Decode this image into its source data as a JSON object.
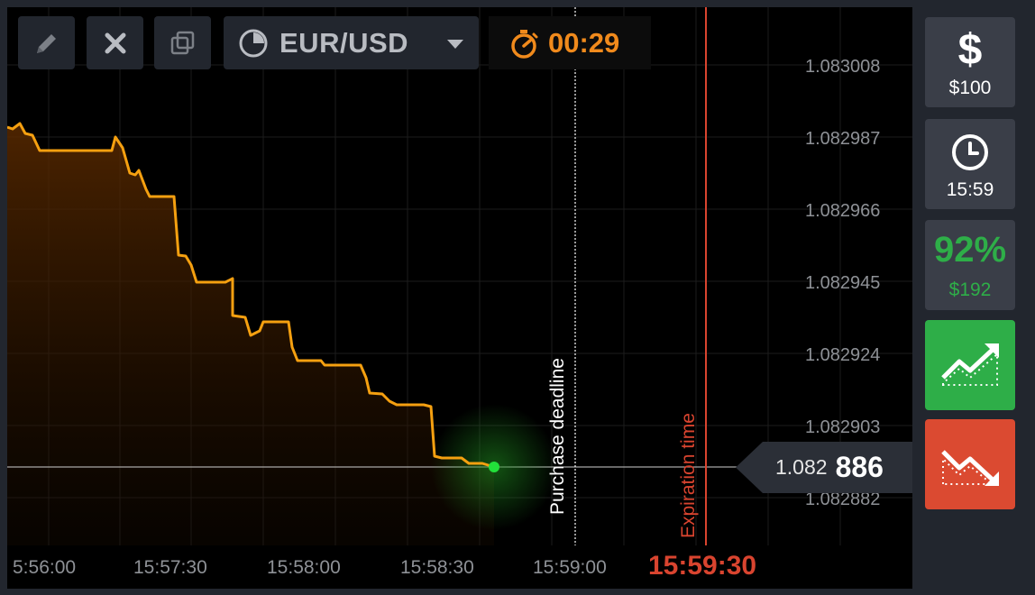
{
  "toolbar": {
    "asset": "EUR/USD",
    "timer": "00:29"
  },
  "chart": {
    "price_labels": [
      "1.083008",
      "1.082987",
      "1.082966",
      "1.082945",
      "1.082924",
      "1.082903",
      "1.082882"
    ],
    "time_labels": [
      "5:56:00",
      "15:57:30",
      "15:58:00",
      "15:58:30",
      "15:59:00"
    ],
    "expiration_time_label": "15:59:30",
    "purchase_deadline_label": "Purchase deadline",
    "expiration_label": "Expiration time",
    "current_price_prefix": "1.082",
    "current_price_suffix": "886"
  },
  "side": {
    "investment": "$100",
    "expiry_time": "15:59",
    "payout_percent": "92%",
    "payout_amount": "$192"
  },
  "colors": {
    "line": "#f5a010",
    "deadline": "#ffffff",
    "expiration": "#d9442f",
    "call": "#2eae48",
    "put": "#db4a31",
    "current_dot": "#22e03a"
  },
  "icons": [
    "edit-icon",
    "close-icon",
    "copy-icon",
    "clock-icon",
    "chevron-down-icon",
    "stopwatch-icon",
    "dollar-icon",
    "trend-up-icon",
    "trend-down-icon"
  ]
}
